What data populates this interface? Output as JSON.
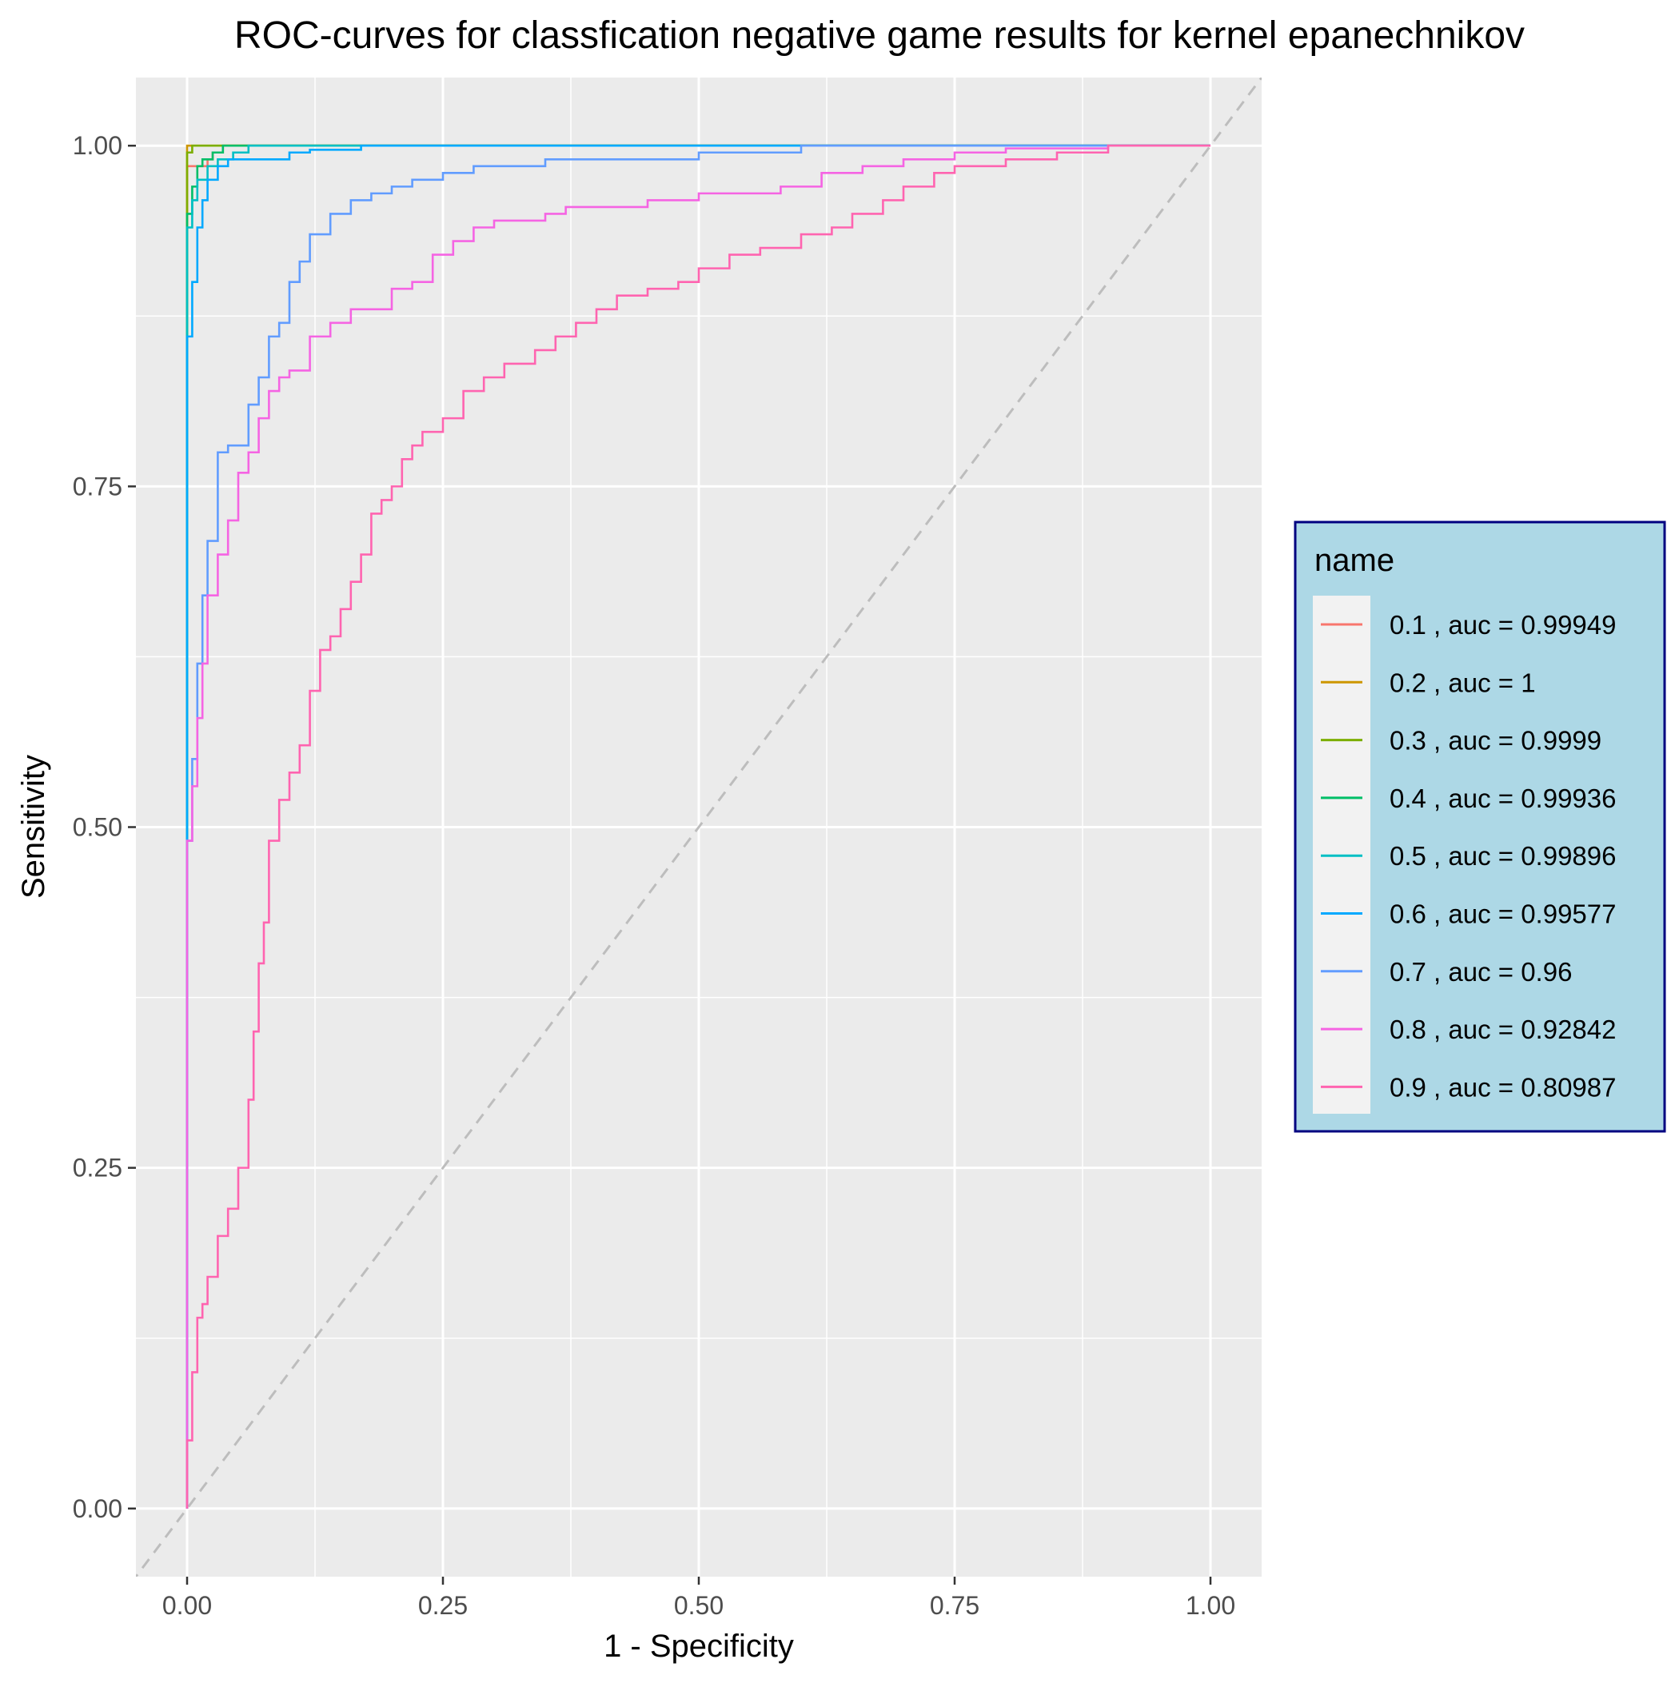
{
  "chart_data": {
    "type": "line",
    "title": "ROC-curves for classfication negative game results for kernel epanechnikov",
    "xlabel": "1 - Specificity",
    "ylabel": "Sensitivity",
    "xlim": [
      -0.05,
      1.05
    ],
    "ylim": [
      -0.05,
      1.05
    ],
    "x_ticks": [
      0,
      0.25,
      0.5,
      0.75,
      1
    ],
    "x_tick_labels": [
      "0.00",
      "0.25",
      "0.50",
      "0.75",
      "1.00"
    ],
    "y_ticks": [
      0,
      0.25,
      0.5,
      0.75,
      1
    ],
    "y_tick_labels": [
      "0.00",
      "0.25",
      "0.50",
      "0.75",
      "1.00"
    ],
    "grid": true,
    "reference_line": {
      "style": "dashed",
      "color": "#bdbdbd",
      "from": [
        0,
        0
      ],
      "to": [
        1,
        1
      ]
    },
    "legend": {
      "title": "name",
      "position": "right",
      "background": "#add8e6",
      "border": "#000080"
    },
    "series": [
      {
        "name": "0.1 , auc = 0.99949",
        "color": "#F8766D",
        "points": [
          [
            0,
            0
          ],
          [
            0,
            0.985
          ],
          [
            0.02,
            0.985
          ],
          [
            0.025,
            0.99
          ],
          [
            0.035,
            0.995
          ],
          [
            0.04,
            1
          ],
          [
            1,
            1
          ]
        ]
      },
      {
        "name": "0.2 , auc = 1",
        "color": "#CD9600",
        "points": [
          [
            0,
            0
          ],
          [
            0,
            1
          ],
          [
            1,
            1
          ]
        ]
      },
      {
        "name": "0.3 , auc = 0.9999",
        "color": "#7CAE00",
        "points": [
          [
            0,
            0
          ],
          [
            0,
            0.99
          ],
          [
            0.005,
            0.995
          ],
          [
            0.02,
            1
          ],
          [
            1,
            1
          ]
        ]
      },
      {
        "name": "0.4 , auc = 0.99936",
        "color": "#00BE67",
        "points": [
          [
            0,
            0
          ],
          [
            0,
            0.93
          ],
          [
            0.005,
            0.95
          ],
          [
            0.01,
            0.97
          ],
          [
            0.015,
            0.985
          ],
          [
            0.025,
            0.99
          ],
          [
            0.035,
            0.995
          ],
          [
            0.06,
            1
          ],
          [
            1,
            1
          ]
        ]
      },
      {
        "name": "0.5 , auc = 0.99896",
        "color": "#00BFC4",
        "points": [
          [
            0,
            0
          ],
          [
            0,
            0.92
          ],
          [
            0.005,
            0.94
          ],
          [
            0.01,
            0.96
          ],
          [
            0.02,
            0.975
          ],
          [
            0.03,
            0.985
          ],
          [
            0.045,
            0.99
          ],
          [
            0.06,
            0.995
          ],
          [
            0.065,
            1
          ],
          [
            1,
            1
          ]
        ]
      },
      {
        "name": "0.6 , auc = 0.99577",
        "color": "#00A9FF",
        "points": [
          [
            0,
            0
          ],
          [
            0,
            0.7
          ],
          [
            0.005,
            0.86
          ],
          [
            0.01,
            0.9
          ],
          [
            0.015,
            0.94
          ],
          [
            0.02,
            0.96
          ],
          [
            0.03,
            0.975
          ],
          [
            0.04,
            0.985
          ],
          [
            0.06,
            0.99
          ],
          [
            0.1,
            0.99
          ],
          [
            0.12,
            0.995
          ],
          [
            0.17,
            0.997
          ],
          [
            0.18,
            1
          ],
          [
            1,
            1
          ]
        ]
      },
      {
        "name": "0.7 , auc = 0.96",
        "color": "#619CFF",
        "points": [
          [
            0,
            0
          ],
          [
            0,
            0.12
          ],
          [
            0.005,
            0.49
          ],
          [
            0.01,
            0.55
          ],
          [
            0.015,
            0.62
          ],
          [
            0.02,
            0.67
          ],
          [
            0.03,
            0.71
          ],
          [
            0.04,
            0.775
          ],
          [
            0.06,
            0.78
          ],
          [
            0.07,
            0.81
          ],
          [
            0.08,
            0.83
          ],
          [
            0.09,
            0.86
          ],
          [
            0.1,
            0.87
          ],
          [
            0.11,
            0.9
          ],
          [
            0.12,
            0.915
          ],
          [
            0.14,
            0.935
          ],
          [
            0.16,
            0.95
          ],
          [
            0.18,
            0.96
          ],
          [
            0.2,
            0.965
          ],
          [
            0.22,
            0.97
          ],
          [
            0.25,
            0.975
          ],
          [
            0.28,
            0.98
          ],
          [
            0.35,
            0.985
          ],
          [
            0.4,
            0.99
          ],
          [
            0.5,
            0.99
          ],
          [
            0.6,
            0.995
          ],
          [
            0.62,
            1
          ],
          [
            1,
            1
          ]
        ]
      },
      {
        "name": "0.8 , auc = 0.92842",
        "color": "#F564E3",
        "points": [
          [
            0,
            0
          ],
          [
            0,
            0.15
          ],
          [
            0.005,
            0.49
          ],
          [
            0.01,
            0.53
          ],
          [
            0.015,
            0.58
          ],
          [
            0.02,
            0.62
          ],
          [
            0.03,
            0.67
          ],
          [
            0.04,
            0.7
          ],
          [
            0.05,
            0.725
          ],
          [
            0.06,
            0.76
          ],
          [
            0.07,
            0.775
          ],
          [
            0.08,
            0.8
          ],
          [
            0.09,
            0.82
          ],
          [
            0.1,
            0.83
          ],
          [
            0.12,
            0.835
          ],
          [
            0.14,
            0.86
          ],
          [
            0.16,
            0.87
          ],
          [
            0.17,
            0.88
          ],
          [
            0.2,
            0.88
          ],
          [
            0.22,
            0.895
          ],
          [
            0.24,
            0.9
          ],
          [
            0.26,
            0.92
          ],
          [
            0.28,
            0.93
          ],
          [
            0.3,
            0.94
          ],
          [
            0.35,
            0.945
          ],
          [
            0.37,
            0.95
          ],
          [
            0.45,
            0.955
          ],
          [
            0.5,
            0.96
          ],
          [
            0.58,
            0.965
          ],
          [
            0.62,
            0.97
          ],
          [
            0.66,
            0.98
          ],
          [
            0.7,
            0.985
          ],
          [
            0.75,
            0.99
          ],
          [
            0.8,
            0.995
          ],
          [
            0.9,
            0.998
          ],
          [
            0.95,
            1
          ],
          [
            1,
            1
          ]
        ]
      },
      {
        "name": "0.9 , auc = 0.80987",
        "color": "#FF64B0",
        "points": [
          [
            0,
            0
          ],
          [
            0.005,
            0.05
          ],
          [
            0.01,
            0.1
          ],
          [
            0.015,
            0.14
          ],
          [
            0.02,
            0.15
          ],
          [
            0.03,
            0.17
          ],
          [
            0.04,
            0.2
          ],
          [
            0.05,
            0.22
          ],
          [
            0.06,
            0.25
          ],
          [
            0.065,
            0.3
          ],
          [
            0.07,
            0.35
          ],
          [
            0.075,
            0.4
          ],
          [
            0.08,
            0.43
          ],
          [
            0.09,
            0.49
          ],
          [
            0.1,
            0.52
          ],
          [
            0.11,
            0.54
          ],
          [
            0.12,
            0.56
          ],
          [
            0.13,
            0.6
          ],
          [
            0.14,
            0.63
          ],
          [
            0.15,
            0.64
          ],
          [
            0.16,
            0.66
          ],
          [
            0.17,
            0.68
          ],
          [
            0.18,
            0.7
          ],
          [
            0.19,
            0.73
          ],
          [
            0.2,
            0.74
          ],
          [
            0.21,
            0.75
          ],
          [
            0.22,
            0.77
          ],
          [
            0.23,
            0.78
          ],
          [
            0.25,
            0.79
          ],
          [
            0.27,
            0.8
          ],
          [
            0.29,
            0.82
          ],
          [
            0.31,
            0.83
          ],
          [
            0.34,
            0.84
          ],
          [
            0.36,
            0.85
          ],
          [
            0.38,
            0.86
          ],
          [
            0.4,
            0.87
          ],
          [
            0.42,
            0.88
          ],
          [
            0.45,
            0.89
          ],
          [
            0.48,
            0.895
          ],
          [
            0.5,
            0.9
          ],
          [
            0.53,
            0.91
          ],
          [
            0.56,
            0.92
          ],
          [
            0.6,
            0.925
          ],
          [
            0.63,
            0.935
          ],
          [
            0.65,
            0.94
          ],
          [
            0.68,
            0.95
          ],
          [
            0.7,
            0.96
          ],
          [
            0.73,
            0.97
          ],
          [
            0.75,
            0.98
          ],
          [
            0.8,
            0.985
          ],
          [
            0.85,
            0.99
          ],
          [
            0.9,
            0.995
          ],
          [
            0.93,
            1
          ],
          [
            1,
            1
          ]
        ]
      }
    ]
  }
}
